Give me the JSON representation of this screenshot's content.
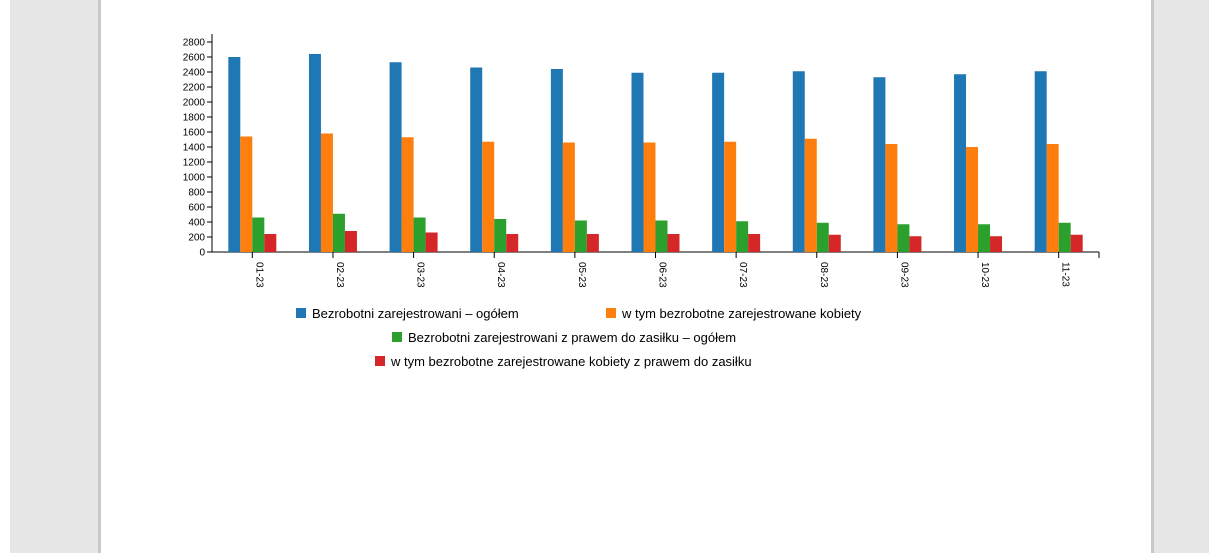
{
  "chart_data": {
    "type": "bar",
    "title": "",
    "xlabel": "",
    "ylabel": "",
    "ylim": [
      0,
      2800
    ],
    "yticks": [
      0,
      200,
      400,
      600,
      800,
      1000,
      1200,
      1400,
      1600,
      1800,
      2000,
      2200,
      2400,
      2600,
      2800
    ],
    "categories": [
      "01-23",
      "02-23",
      "03-23",
      "04-23",
      "05-23",
      "06-23",
      "07-23",
      "08-23",
      "09-23",
      "10-23",
      "11-23"
    ],
    "grid": false,
    "legend": "bottom",
    "series": [
      {
        "name": "Bezrobotni zarejestrowani – ogółem",
        "color": "#1f77b4",
        "values": [
          2600,
          2640,
          2530,
          2460,
          2440,
          2390,
          2390,
          2410,
          2330,
          2370,
          2410
        ]
      },
      {
        "name": "w tym bezrobotne zarejestrowane kobiety",
        "color": "#ff7f0e",
        "values": [
          1540,
          1580,
          1530,
          1470,
          1460,
          1460,
          1470,
          1510,
          1440,
          1400,
          1440
        ]
      },
      {
        "name": "Bezrobotni zarejestrowani z prawem do zasiłku – ogółem",
        "color": "#2ca02c",
        "values": [
          460,
          510,
          460,
          440,
          420,
          420,
          410,
          390,
          370,
          370,
          390
        ]
      },
      {
        "name": "w tym bezrobotne zarejestrowane kobiety z prawem do zasiłku",
        "color": "#d62728",
        "values": [
          240,
          280,
          260,
          240,
          240,
          240,
          240,
          230,
          210,
          210,
          230
        ]
      }
    ]
  }
}
